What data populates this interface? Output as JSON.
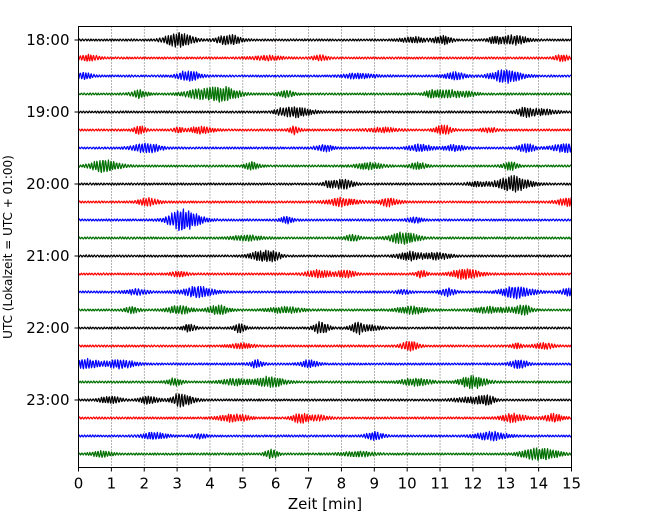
{
  "chart_data": {
    "type": "line",
    "title": "",
    "xlabel": "Zeit  [min]",
    "ylabel": "UTC (Lokalzeit = UTC + 01:00)",
    "xlim": [
      0,
      15
    ],
    "x_ticks": [
      "0",
      "1",
      "2",
      "3",
      "4",
      "5",
      "6",
      "7",
      "8",
      "9",
      "10",
      "11",
      "12",
      "13",
      "14",
      "15"
    ],
    "y_ticks": [
      "18:00",
      "19:00",
      "20:00",
      "21:00",
      "22:00",
      "23:00"
    ],
    "grid": "vertical dotted lines at each minute",
    "trace_interval_minutes": 15,
    "trace_color_cycle": [
      "#000000",
      "#ff0000",
      "#0000ff",
      "#007000"
    ],
    "traces": [
      {
        "start": "18:00",
        "color": "#000000"
      },
      {
        "start": "18:15",
        "color": "#ff0000"
      },
      {
        "start": "18:30",
        "color": "#0000ff"
      },
      {
        "start": "18:45",
        "color": "#007000"
      },
      {
        "start": "19:00",
        "color": "#000000"
      },
      {
        "start": "19:15",
        "color": "#ff0000"
      },
      {
        "start": "19:30",
        "color": "#0000ff"
      },
      {
        "start": "19:45",
        "color": "#007000"
      },
      {
        "start": "20:00",
        "color": "#000000"
      },
      {
        "start": "20:15",
        "color": "#ff0000"
      },
      {
        "start": "20:30",
        "color": "#0000ff"
      },
      {
        "start": "20:45",
        "color": "#007000"
      },
      {
        "start": "21:00",
        "color": "#000000"
      },
      {
        "start": "21:15",
        "color": "#ff0000"
      },
      {
        "start": "21:30",
        "color": "#0000ff"
      },
      {
        "start": "21:45",
        "color": "#007000"
      },
      {
        "start": "22:00",
        "color": "#000000"
      },
      {
        "start": "22:15",
        "color": "#ff0000"
      },
      {
        "start": "22:30",
        "color": "#0000ff"
      },
      {
        "start": "22:45",
        "color": "#007000"
      },
      {
        "start": "23:00",
        "color": "#000000"
      },
      {
        "start": "23:15",
        "color": "#ff0000"
      },
      {
        "start": "23:30",
        "color": "#0000ff"
      },
      {
        "start": "23:45",
        "color": "#007000"
      }
    ]
  }
}
